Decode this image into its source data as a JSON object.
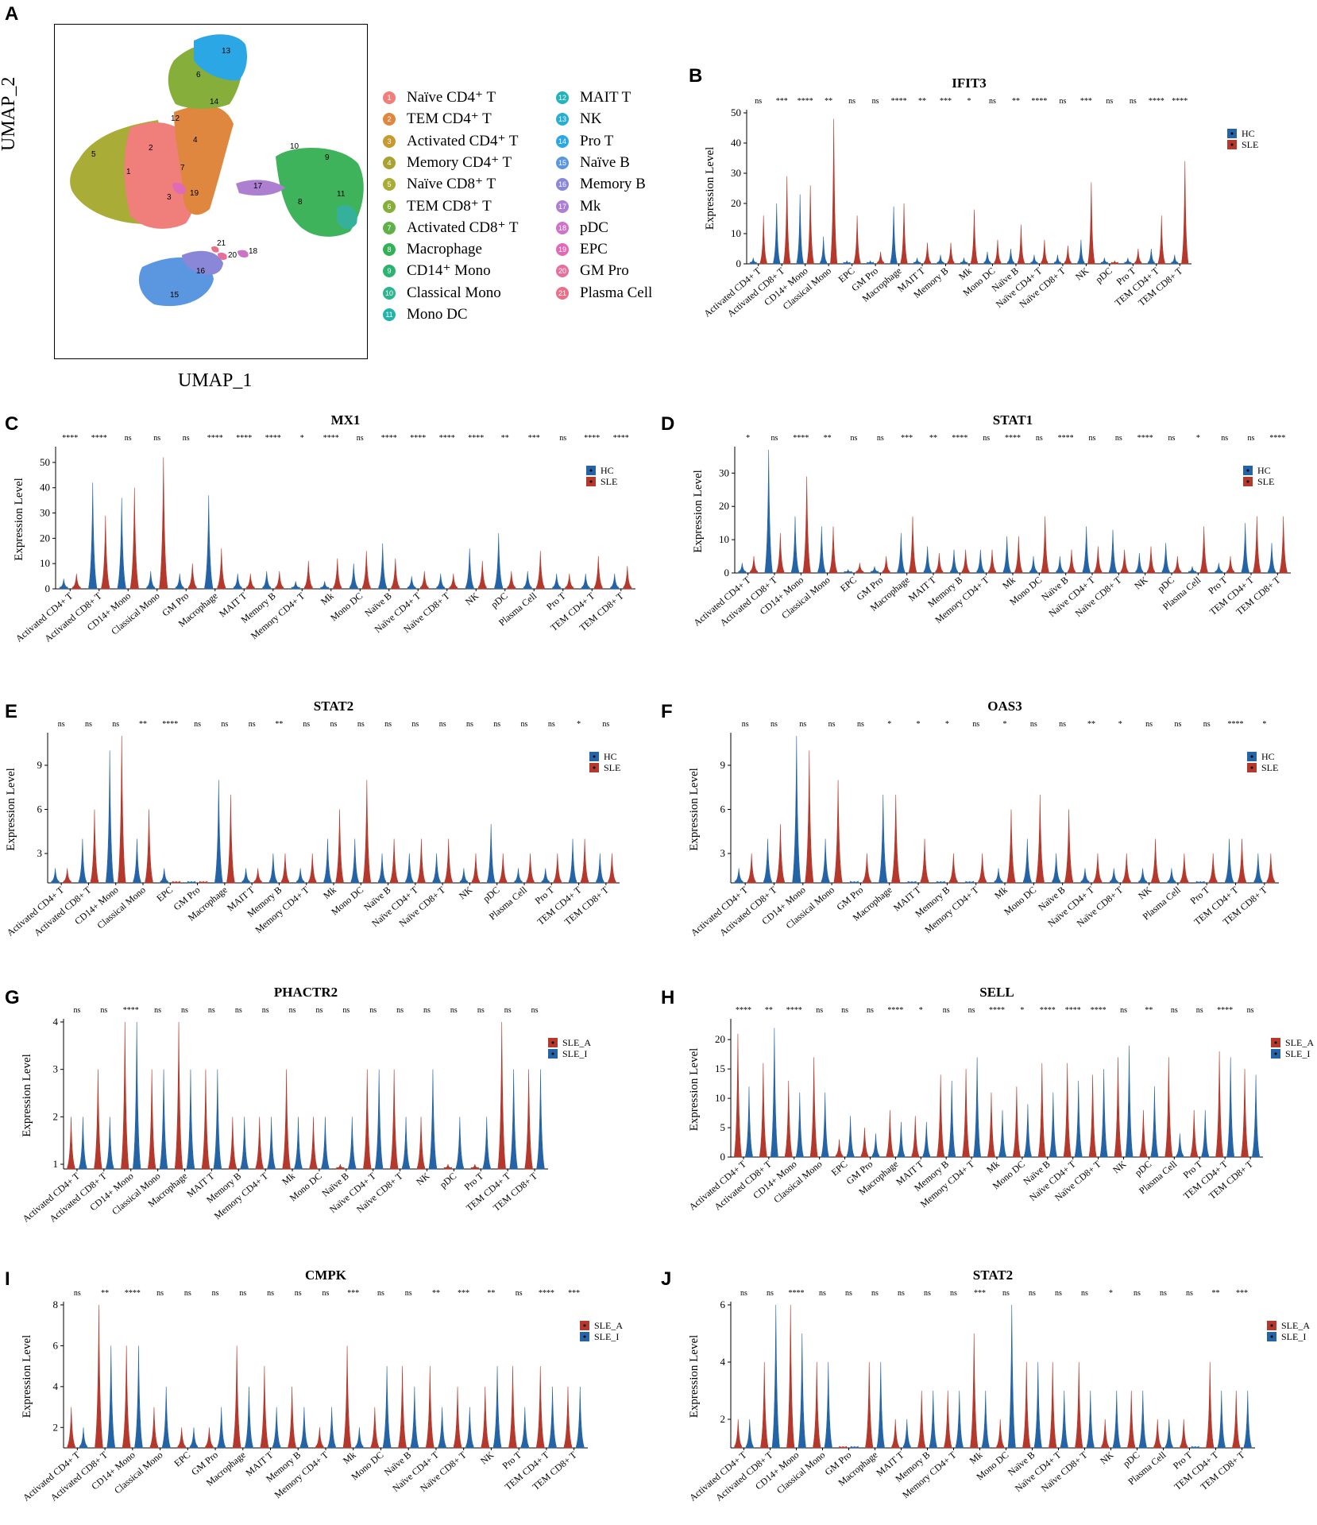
{
  "letters": {
    "A": "A",
    "B": "B",
    "C": "C",
    "D": "D",
    "E": "E",
    "F": "F",
    "G": "G",
    "H": "H",
    "I": "I",
    "J": "J"
  },
  "umap": {
    "xlabel": "UMAP_1",
    "ylabel": "UMAP_2",
    "cluster_numbers": [
      "1",
      "2",
      "3",
      "4",
      "5",
      "6",
      "7",
      "8",
      "9",
      "10",
      "11",
      "12",
      "13",
      "14",
      "15",
      "16",
      "17",
      "18",
      "19",
      "20",
      "21"
    ],
    "legend": [
      {
        "n": "1",
        "label": "Naïve CD4⁺ T",
        "color": "#f07f7c"
      },
      {
        "n": "2",
        "label": "TEM CD4⁺ T",
        "color": "#e0873f"
      },
      {
        "n": "3",
        "label": "Activated CD4⁺ T",
        "color": "#c7992e"
      },
      {
        "n": "4",
        "label": "Memory CD4⁺ T",
        "color": "#a8a230"
      },
      {
        "n": "5",
        "label": "Naïve CD8⁺ T",
        "color": "#a9ac36"
      },
      {
        "n": "6",
        "label": "TEM CD8⁺ T",
        "color": "#86ae3a"
      },
      {
        "n": "7",
        "label": "Activated CD8⁺ T",
        "color": "#5eb147"
      },
      {
        "n": "8",
        "label": "Macrophage",
        "color": "#32b157"
      },
      {
        "n": "9",
        "label": "CD14⁺ Mono",
        "color": "#2cb372"
      },
      {
        "n": "10",
        "label": "Classical Mono",
        "color": "#2cb590"
      },
      {
        "n": "11",
        "label": "Mono DC",
        "color": "#24b3a8"
      },
      {
        "n": "12",
        "label": "MAIT T",
        "color": "#22b3bd"
      },
      {
        "n": "13",
        "label": "NK",
        "color": "#28aed5"
      },
      {
        "n": "14",
        "label": "Pro T",
        "color": "#2ca7e5"
      },
      {
        "n": "15",
        "label": "Naïve B",
        "color": "#5b97e0"
      },
      {
        "n": "16",
        "label": "Memory B",
        "color": "#8b87d8"
      },
      {
        "n": "17",
        "label": "Mk",
        "color": "#ad7fd0"
      },
      {
        "n": "18",
        "label": "pDC",
        "color": "#cd73c8"
      },
      {
        "n": "19",
        "label": "EPC",
        "color": "#e06ab5"
      },
      {
        "n": "20",
        "label": "GM Pro",
        "color": "#e66f9e"
      },
      {
        "n": "21",
        "label": "Plasma Cell",
        "color": "#ea7088"
      }
    ]
  },
  "chart_data": [
    {
      "id": "B",
      "type": "violin",
      "title": "IFIT3",
      "ylabel": "Expression Level",
      "ylim": [
        0,
        50
      ],
      "yticks": [
        0,
        10,
        20,
        30,
        40,
        50
      ],
      "categories": [
        "Activated CD4+ T",
        "Activated CD8+ T",
        "CD14+ Mono",
        "Classical Mono",
        "EPC",
        "GM Pro",
        "Macrophage",
        "MAIT T",
        "Memory B",
        "Mk",
        "Mono DC",
        "Naïve B",
        "Naïve CD4+ T",
        "Naïve CD8+ T",
        "NK",
        "pDC",
        "Pro T",
        "TEM CD4+ T",
        "TEM CD8+ T"
      ],
      "series": [
        {
          "name": "HC",
          "color": "#2464a6",
          "values": [
            2,
            20,
            23,
            9,
            1,
            1,
            19,
            2,
            3,
            2,
            4,
            5,
            3,
            3,
            8,
            2,
            2,
            5,
            3
          ]
        },
        {
          "name": "SLE",
          "color": "#b4382c",
          "values": [
            16,
            29,
            26,
            48,
            16,
            4,
            20,
            7,
            7,
            18,
            8,
            13,
            8,
            6,
            27,
            1,
            5,
            16,
            34
          ]
        }
      ],
      "sig": [
        "ns",
        "***",
        "****",
        "**",
        "ns",
        "ns",
        "****",
        "**",
        "***",
        "*",
        "ns",
        "**",
        "****",
        "ns",
        "***",
        "ns",
        "ns",
        "****",
        "****"
      ]
    },
    {
      "id": "C",
      "type": "violin",
      "title": "MX1",
      "ylabel": "Expression Level",
      "ylim": [
        0,
        55
      ],
      "yticks": [
        0,
        10,
        20,
        30,
        40,
        50
      ],
      "categories": [
        "Activated CD4+ T",
        "Activated CD8+ T",
        "CD14+ Mono",
        "Classical Mono",
        "GM Pro",
        "Macrophage",
        "MAIT T",
        "Memory B",
        "Memory CD4+ T",
        "Mk",
        "Mono DC",
        "Naïve B",
        "Naïve CD4+ T",
        "Naïve CD8+ T",
        "NK",
        "pDC",
        "Plasma Cell",
        "Pro T",
        "TEM CD4+ T",
        "TEM CD8+ T"
      ],
      "series": [
        {
          "name": "HC",
          "color": "#2464a6",
          "values": [
            4,
            42,
            36,
            7,
            6,
            37,
            6,
            7,
            3,
            3,
            10,
            18,
            5,
            6,
            16,
            22,
            7,
            6,
            6,
            6
          ]
        },
        {
          "name": "SLE",
          "color": "#b4382c",
          "values": [
            6,
            29,
            40,
            52,
            10,
            16,
            6,
            7,
            11,
            12,
            15,
            12,
            7,
            6,
            11,
            7,
            15,
            6,
            13,
            9
          ]
        }
      ],
      "sig": [
        "****",
        "****",
        "ns",
        "ns",
        "ns",
        "****",
        "****",
        "****",
        "*",
        "****",
        "ns",
        "****",
        "****",
        "****",
        "****",
        "**",
        "***",
        "ns",
        "****",
        "****"
      ]
    },
    {
      "id": "D",
      "type": "violin",
      "title": "STAT1",
      "ylabel": "Expression Level",
      "ylim": [
        0,
        37
      ],
      "yticks": [
        0,
        10,
        20,
        30
      ],
      "categories": [
        "Activated CD4+ T",
        "Activated CD8+ T",
        "CD14+ Mono",
        "Classical Mono",
        "EPC",
        "GM Pro",
        "Macrophage",
        "MAIT T",
        "Memory B",
        "Memory CD4+ T",
        "Mk",
        "Mono DC",
        "Naïve B",
        "Naïve CD4+ T",
        "Naïve CD8+ T",
        "NK",
        "pDC",
        "Plasma Cell",
        "Pro T",
        "TEM CD4+ T",
        "TEM CD8+ T"
      ],
      "series": [
        {
          "name": "HC",
          "color": "#2464a6",
          "values": [
            3,
            37,
            17,
            14,
            1,
            2,
            12,
            8,
            7,
            7,
            11,
            5,
            5,
            14,
            13,
            6,
            9,
            2,
            3,
            15,
            9
          ]
        },
        {
          "name": "SLE",
          "color": "#b4382c",
          "values": [
            5,
            12,
            29,
            14,
            3,
            5,
            17,
            6,
            7,
            7,
            11,
            17,
            7,
            8,
            7,
            8,
            5,
            14,
            5,
            17,
            17
          ]
        }
      ],
      "sig": [
        "*",
        "ns",
        "****",
        "**",
        "ns",
        "ns",
        "***",
        "**",
        "****",
        "ns",
        "****",
        "ns",
        "****",
        "ns",
        "ns",
        "****",
        "ns",
        "*",
        "ns",
        "ns",
        "****"
      ]
    },
    {
      "id": "E",
      "type": "violin",
      "title": "STAT2",
      "ylabel": "Expression Level",
      "ylim": [
        1,
        11
      ],
      "yticks": [
        3,
        6,
        9
      ],
      "categories": [
        "Activated CD4+ T",
        "Activated CD8+ T",
        "CD14+ Mono",
        "Classical Mono",
        "EPC",
        "GM Pro",
        "Macrophage",
        "MAIT T",
        "Memory B",
        "Memory CD4+ T",
        "Mk",
        "Mono DC",
        "Naïve B",
        "Naïve CD4+ T",
        "Naïve CD8+ T",
        "NK",
        "pDC",
        "Plasma Cell",
        "Pro T",
        "TEM CD4+ T",
        "TEM CD8+ T"
      ],
      "series": [
        {
          "name": "HC",
          "color": "#2464a6",
          "values": [
            2,
            4,
            10,
            4,
            2,
            1,
            8,
            2,
            3,
            2,
            4,
            4,
            3,
            3,
            3,
            2,
            5,
            2,
            2,
            4,
            3
          ]
        },
        {
          "name": "SLE",
          "color": "#b4382c",
          "values": [
            2,
            6,
            11,
            6,
            1,
            1,
            7,
            2,
            3,
            3,
            6,
            8,
            4,
            4,
            4,
            3,
            3,
            3,
            3,
            4,
            3
          ]
        }
      ],
      "sig": [
        "ns",
        "ns",
        "ns",
        "**",
        "****",
        "ns",
        "ns",
        "ns",
        "**",
        "ns",
        "ns",
        "ns",
        "ns",
        "ns",
        "ns",
        "ns",
        "ns",
        "ns",
        "ns",
        "*",
        "ns"
      ]
    },
    {
      "id": "F",
      "type": "violin",
      "title": "OAS3",
      "ylabel": "Expression Level",
      "ylim": [
        1,
        11
      ],
      "yticks": [
        3,
        6,
        9
      ],
      "categories": [
        "Activated CD4+ T",
        "Activated CD8+ T",
        "CD14+ Mono",
        "Classical Mono",
        "GM Pro",
        "Macrophage",
        "MAIT T",
        "Memory B",
        "Memory CD4+ T",
        "Mk",
        "Mono DC",
        "Naïve B",
        "Naïve CD4+ T",
        "Naïve CD8+ T",
        "NK",
        "Plasma Cell",
        "Pro T",
        "TEM CD4+ T",
        "TEM CD8+ T"
      ],
      "series": [
        {
          "name": "HC",
          "color": "#2464a6",
          "values": [
            2,
            4,
            11,
            4,
            1,
            7,
            1,
            1,
            1,
            2,
            4,
            3,
            2,
            2,
            2,
            2,
            1,
            4,
            3
          ]
        },
        {
          "name": "SLE",
          "color": "#b4382c",
          "values": [
            3,
            5,
            10,
            8,
            3,
            7,
            4,
            3,
            3,
            6,
            7,
            6,
            3,
            3,
            4,
            3,
            3,
            4,
            3
          ]
        }
      ],
      "sig": [
        "ns",
        "ns",
        "ns",
        "ns",
        "ns",
        "*",
        "*",
        "*",
        "ns",
        "*",
        "ns",
        "ns",
        "**",
        "*",
        "ns",
        "ns",
        "ns",
        "****",
        "*"
      ]
    },
    {
      "id": "G",
      "type": "violin",
      "title": "PHACTR2",
      "ylabel": "Expression Level",
      "ylim": [
        0.9,
        4
      ],
      "yticks": [
        1,
        2,
        3,
        4
      ],
      "categories": [
        "Activated CD4+ T",
        "Activated CD8+ T",
        "CD14+ Mono",
        "Classical Mono",
        "Macrophage",
        "MAIT T",
        "Memory B",
        "Memory CD4+ T",
        "Mk",
        "Mono DC",
        "Naïve B",
        "Naïve CD4+ T",
        "Naïve CD8+ T",
        "NK",
        "pDC",
        "Pro T",
        "TEM CD4+ T",
        "TEM CD8+ T"
      ],
      "series": [
        {
          "name": "SLE_A",
          "color": "#b4382c",
          "values": [
            2,
            3,
            4,
            3,
            4,
            3,
            2,
            2,
            3,
            2,
            1,
            3,
            3,
            2,
            1,
            1,
            4,
            3
          ]
        },
        {
          "name": "SLE_I",
          "color": "#2464a6",
          "values": [
            2,
            2,
            4,
            3,
            3,
            3,
            2,
            2,
            2,
            2,
            2,
            3,
            2,
            3,
            2,
            2,
            3,
            3
          ]
        }
      ],
      "sig": [
        "ns",
        "ns",
        "****",
        "ns",
        "ns",
        "ns",
        "ns",
        "ns",
        "ns",
        "ns",
        "ns",
        "ns",
        "ns",
        "ns",
        "ns",
        "ns",
        "ns",
        "ns"
      ]
    },
    {
      "id": "H",
      "type": "violin",
      "title": "SELL",
      "ylabel": "Expression Level",
      "ylim": [
        0,
        23
      ],
      "yticks": [
        0,
        5,
        10,
        15,
        20
      ],
      "categories": [
        "Activated CD4+ T",
        "Activated CD8+ T",
        "CD14+ Mono",
        "Classical Mono",
        "EPC",
        "GM Pro",
        "Macrophage",
        "MAIT T",
        "Memory B",
        "Memory CD4+ T",
        "Mk",
        "Mono DC",
        "Naïve B",
        "Naïve CD4+ T",
        "Naïve CD8+ T",
        "NK",
        "pDC",
        "Plasma Cell",
        "Pro T",
        "TEM CD4+ T",
        "TEM CD8+ T"
      ],
      "series": [
        {
          "name": "SLE_A",
          "color": "#b4382c",
          "values": [
            21,
            16,
            13,
            17,
            3,
            5,
            8,
            7,
            14,
            15,
            11,
            12,
            16,
            16,
            14,
            17,
            8,
            17,
            8,
            18,
            15
          ]
        },
        {
          "name": "SLE_I",
          "color": "#2464a6",
          "values": [
            12,
            22,
            11,
            11,
            7,
            4,
            6,
            6,
            13,
            17,
            8,
            9,
            11,
            13,
            15,
            19,
            12,
            4,
            8,
            17,
            14
          ]
        }
      ],
      "sig": [
        "****",
        "**",
        "****",
        "ns",
        "ns",
        "ns",
        "****",
        "*",
        "ns",
        "ns",
        "****",
        "*",
        "****",
        "****",
        "****",
        "ns",
        "**",
        "ns",
        "ns",
        "****",
        "ns"
      ]
    },
    {
      "id": "I",
      "type": "violin",
      "title": "CMPK",
      "ylabel": "Expression Level",
      "ylim": [
        1,
        8
      ],
      "yticks": [
        2,
        4,
        6,
        8
      ],
      "categories": [
        "Activated CD4+ T",
        "Activated CD8+ T",
        "CD14+ Mono",
        "Classical Mono",
        "EPC",
        "GM Pro",
        "Macrophage",
        "MAIT T",
        "Memory B",
        "Memory CD4+ T",
        "Mk",
        "Mono DC",
        "Naïve B",
        "Naïve CD4+ T",
        "Naïve CD8+ T",
        "NK",
        "Pro T",
        "TEM CD4+ T",
        "TEM CD8+ T"
      ],
      "series": [
        {
          "name": "SLE_A",
          "color": "#b4382c",
          "values": [
            3,
            8,
            6,
            3,
            2,
            2,
            6,
            5,
            4,
            2,
            6,
            3,
            5,
            5,
            4,
            4,
            5,
            5,
            4
          ]
        },
        {
          "name": "SLE_I",
          "color": "#2464a6",
          "values": [
            2,
            6,
            6,
            4,
            2,
            3,
            4,
            3,
            3,
            3,
            2,
            5,
            4,
            3,
            3,
            5,
            3,
            4,
            4
          ]
        }
      ],
      "sig": [
        "ns",
        "**",
        "****",
        "ns",
        "ns",
        "ns",
        "ns",
        "ns",
        "ns",
        "ns",
        "***",
        "ns",
        "ns",
        "**",
        "***",
        "**",
        "ns",
        "****",
        "***"
      ]
    },
    {
      "id": "J",
      "type": "violin",
      "title": "STAT2",
      "ylabel": "Expression Level",
      "ylim": [
        1,
        6
      ],
      "yticks": [
        2,
        4,
        6
      ],
      "categories": [
        "Activated CD4+ T",
        "Activated CD8+ T",
        "CD14+ Mono",
        "Classical Mono",
        "GM Pro",
        "Macrophage",
        "MAIT T",
        "Memory B",
        "Memory CD4+ T",
        "Mk",
        "Mono DC",
        "Naïve B",
        "Naïve CD4+ T",
        "Naïve CD8+ T",
        "NK",
        "pDC",
        "Plasma Cell",
        "Pro T",
        "TEM CD4+ T",
        "TEM CD8+ T"
      ],
      "series": [
        {
          "name": "SLE_A",
          "color": "#b4382c",
          "values": [
            2,
            4,
            6,
            4,
            1,
            4,
            2,
            3,
            3,
            5,
            2,
            4,
            4,
            4,
            2,
            3,
            2,
            2,
            4,
            3
          ]
        },
        {
          "name": "SLE_I",
          "color": "#2464a6",
          "values": [
            2,
            6,
            5,
            4,
            1,
            4,
            2,
            3,
            3,
            3,
            6,
            4,
            3,
            3,
            3,
            3,
            2,
            1,
            3,
            3
          ]
        }
      ],
      "sig": [
        "ns",
        "ns",
        "****",
        "ns",
        "ns",
        "ns",
        "ns",
        "ns",
        "ns",
        "***",
        "ns",
        "ns",
        "ns",
        "ns",
        "*",
        "ns",
        "ns",
        "ns",
        "**",
        "***"
      ]
    }
  ]
}
